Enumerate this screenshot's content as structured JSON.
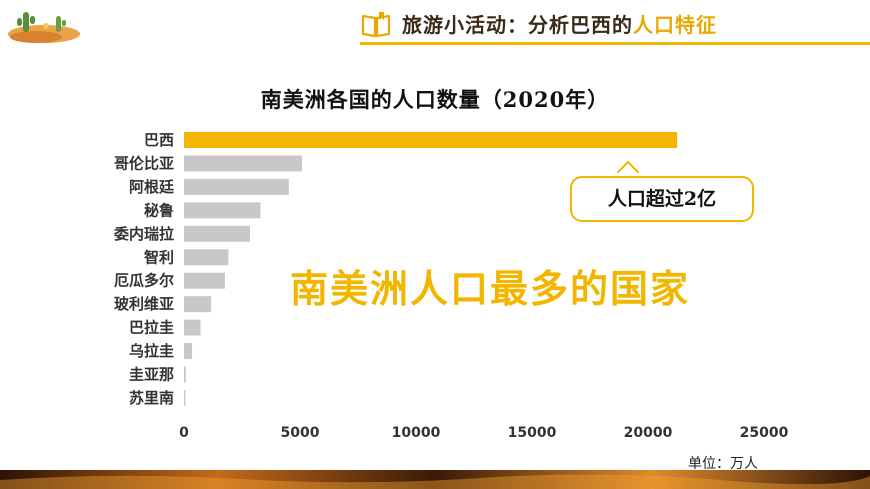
{
  "header": {
    "title_main": "旅游小活动：分析巴西的",
    "title_accent": "人口特征"
  },
  "callout": {
    "text": "人口超过2亿"
  },
  "highlight_text": "南美洲人口最多的国家",
  "unit_label": "单位：万人",
  "colors": {
    "accent": "#f2b600",
    "bar_highlight": "#f2b600",
    "bar_default": "#c8c8c8"
  },
  "icons": {
    "logo": "desert-cactus-logo",
    "header": "open-book-icon"
  },
  "chart_data": {
    "type": "bar",
    "orientation": "horizontal",
    "title": "南美洲各国的人口数量（2020年）",
    "categories": [
      "巴西",
      "哥伦比亚",
      "阿根廷",
      "秘鲁",
      "委内瑞拉",
      "智利",
      "厄瓜多尔",
      "玻利维亚",
      "巴拉圭",
      "乌拉圭",
      "圭亚那",
      "苏里南"
    ],
    "values": [
      21256,
      5088,
      4520,
      3297,
      2844,
      1912,
      1764,
      1167,
      713,
      347,
      79,
      59
    ],
    "highlight": "巴西",
    "xlim": [
      0,
      25000
    ],
    "xticks": [
      "0",
      "5000",
      "10000",
      "15000",
      "20000",
      "25000"
    ],
    "grid": false,
    "legend": false
  }
}
